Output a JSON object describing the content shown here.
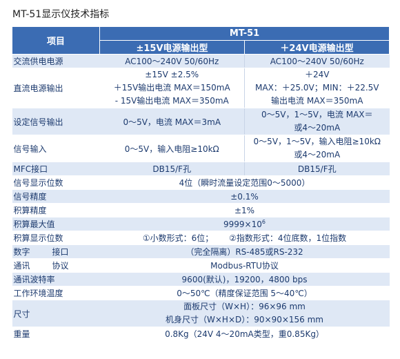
{
  "title": "MT-51显示仪技术指标",
  "header": {
    "item": "项目",
    "model": "MT-51",
    "col1": "±15V电源输出型",
    "col2": "＋24V电源输出型"
  },
  "rows": {
    "ac_power": {
      "label": "交流供电电源",
      "v1": "AC100～240V   50/60Hz",
      "v2": "AC100～240V   50/60Hz"
    },
    "dc_out": {
      "label": "直流电源输出",
      "v1a": "±15V   ±2.5%",
      "v2a": "＋24V",
      "v1b": "＋15V输出电流 MAX＝150mA",
      "v2b": "MAX：＋25.0V；MIN：＋22.5V",
      "v1c": "- 15V输出电流 MAX＝350mA",
      "v2c": "输出电流 MAX＝350mA"
    },
    "set_out": {
      "label": "设定信号输出",
      "v1": "0～5V，电流 MAX＝3mA",
      "v2a": "0～5V，1～5V，电流 MAX＝",
      "v2b": "或4～20mA"
    },
    "sig_in": {
      "label": "信号输入",
      "v1": "0～5V，输入电阻≥10kΩ",
      "v2a": "0～5V，1～5V，输入电阻≥10kΩ",
      "v2b": "或4～20mA"
    },
    "mfc": {
      "label": "MFC接口",
      "v1": "DB15/F孔",
      "v2": "DB15/F孔"
    },
    "digits": {
      "label": "信号显示位数",
      "v": "4位（瞬时流量设定范围0～5000）"
    },
    "sig_acc": {
      "label": "信号精度",
      "v": "±0.1%"
    },
    "int_acc": {
      "label": "积算精度",
      "v": "±1%"
    },
    "int_max": {
      "label": "积算最大值",
      "v": "9999×10",
      "sup": "6"
    },
    "int_digits": {
      "label": "积算显示位数",
      "v1": "①小数形式：6位；",
      "v2": "②指数形式：4位底数，1位指数"
    },
    "digital_if": {
      "label_a": "数字",
      "label_b": "接口",
      "v": "（完全隔离）RS-485或RS-232"
    },
    "comm_proto": {
      "label_a": "通讯",
      "label_b": "协议",
      "v": "Modbus-RTU协议"
    },
    "baud": {
      "label": "通讯波特率",
      "v": "9600(默认)，19200，4800 bps"
    },
    "env_temp": {
      "label": "工作环境温度",
      "v": "0～50℃（精度保证范围 5～40℃）"
    },
    "size": {
      "label": "尺寸",
      "va": "面板尺寸（W×H）：96×96 mm",
      "vb": "机身尺寸（W×H×D）：90×90×156 mm"
    },
    "weight": {
      "label": "重量",
      "v": "0.8Kg（24V 4～20mA类型，重0.85Kg）"
    }
  }
}
